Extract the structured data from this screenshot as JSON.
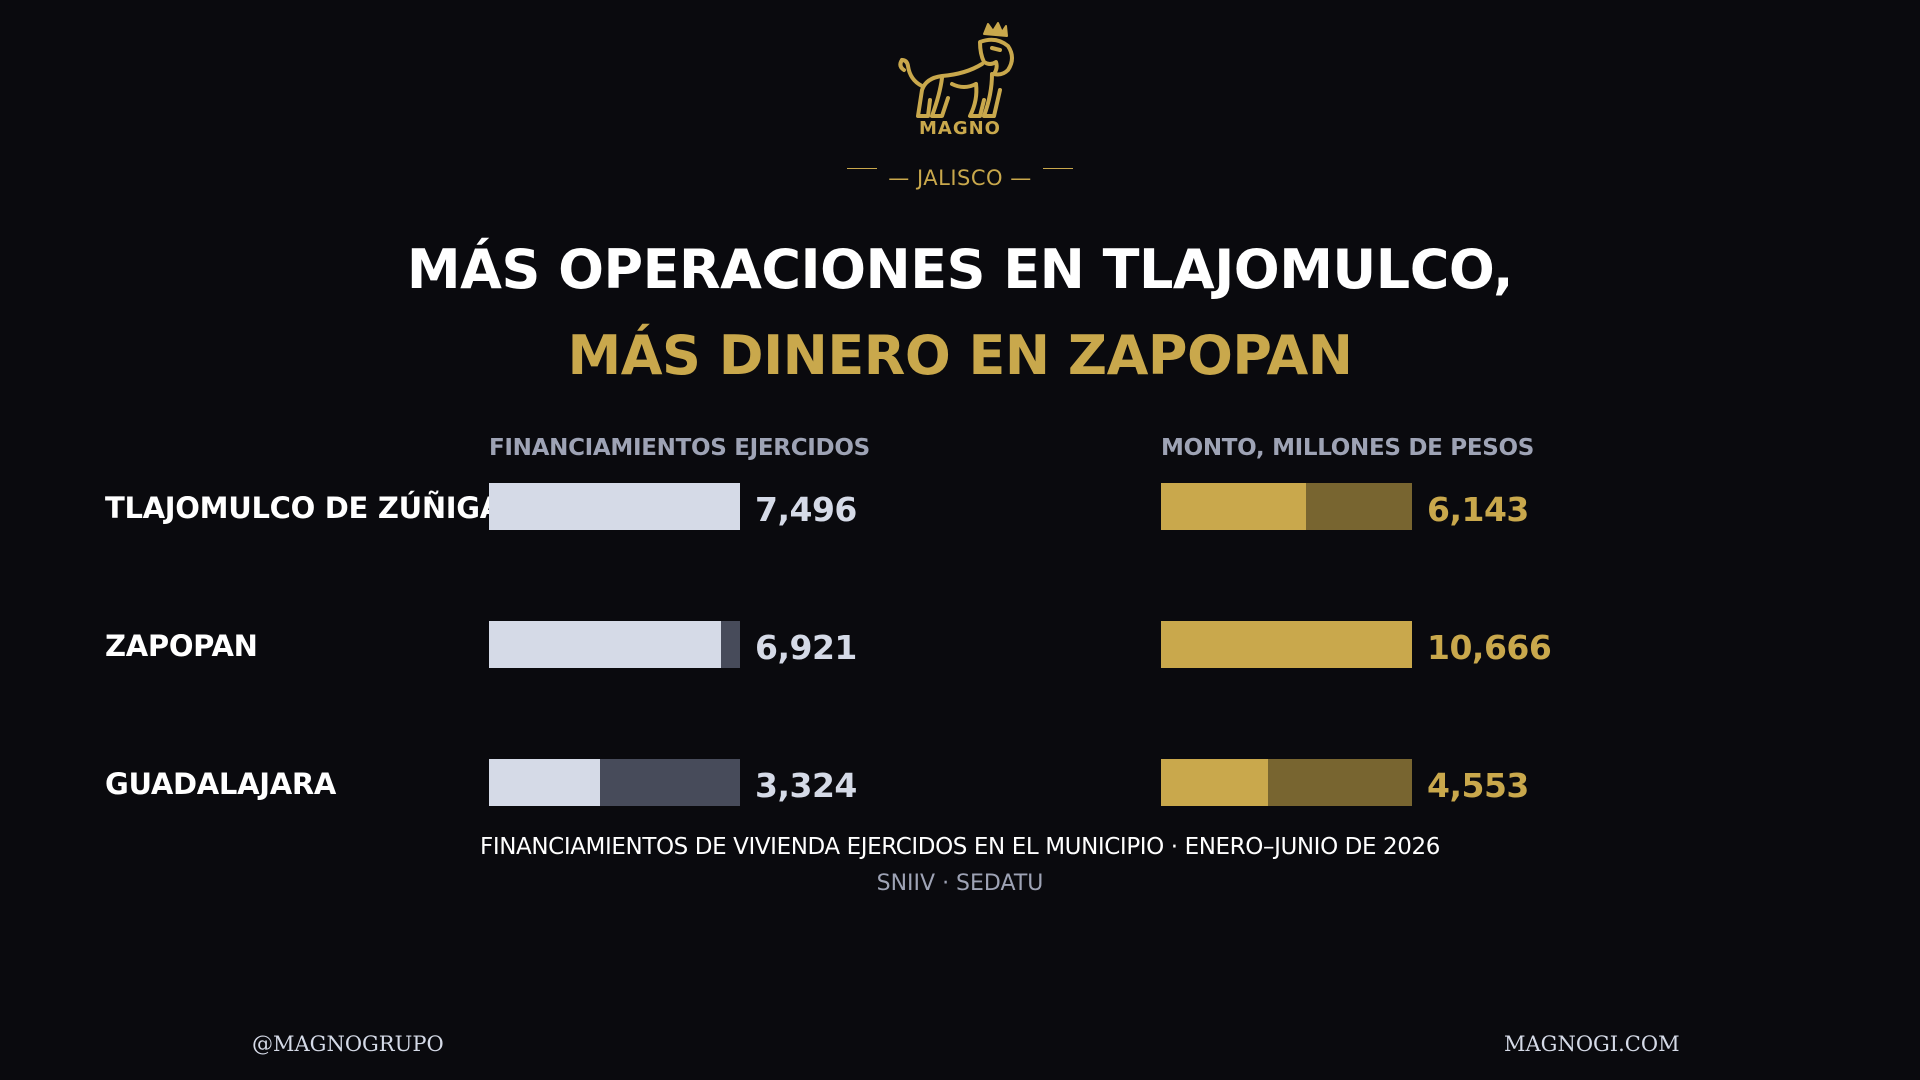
{
  "brand": {
    "name": "MAGNO",
    "color": "#c9a84c"
  },
  "region": "— JALISCO —",
  "title": {
    "line1": "MÁS OPERACIONES EN TLAJOMULCO,",
    "line2": "MÁS DINERO EN ZAPOPAN"
  },
  "colors": {
    "background": "#0a0a0e",
    "gold": "#c9a84c",
    "gold_track": "#786530",
    "light": "#d5dae7",
    "gray_track": "#474b5a",
    "muted": "#9ea3b5"
  },
  "chart_data": [
    {
      "type": "bar",
      "orientation": "horizontal",
      "title": "FINANCIAMIENTOS EJERCIDOS",
      "categories": [
        "TLAJOMULCO DE ZÚÑIGA",
        "ZAPOPAN",
        "GUADALAJARA"
      ],
      "values": [
        7496,
        6921,
        3324
      ],
      "value_labels": [
        "7,496",
        "6,921",
        "3,324"
      ],
      "xlim": [
        0,
        7496
      ],
      "grid": false
    },
    {
      "type": "bar",
      "orientation": "horizontal",
      "title": "MONTO, MILLONES DE PESOS",
      "categories": [
        "TLAJOMULCO DE ZÚÑIGA",
        "ZAPOPAN",
        "GUADALAJARA"
      ],
      "values": [
        6143,
        10666,
        4553
      ],
      "value_labels": [
        "6,143",
        "10,666",
        "4,553"
      ],
      "xlim": [
        0,
        10666
      ],
      "grid": false
    }
  ],
  "caption": "FINANCIAMIENTOS DE VIVIENDA EJERCIDOS EN EL MUNICIPIO · ENERO–JUNIO DE 2026",
  "source": "SNIIV · SEDATU",
  "footer": {
    "left": "@MAGNOGRUPO",
    "right": "MAGNOGI.COM"
  }
}
